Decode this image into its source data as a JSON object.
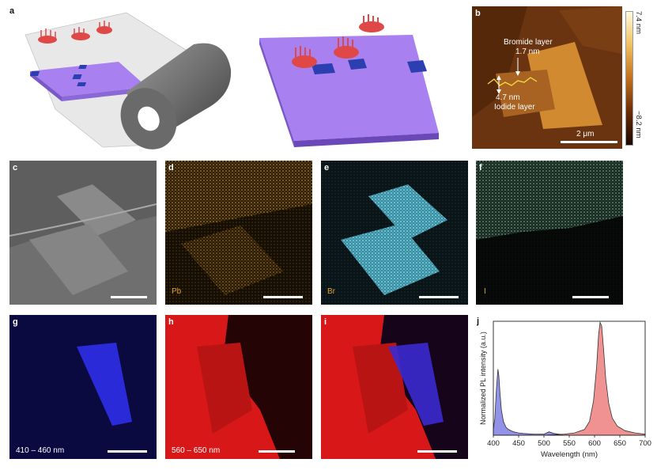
{
  "panels": {
    "a": {
      "label": "a"
    },
    "b": {
      "label": "b",
      "bromide_label": "Bromide layer",
      "bromide_thickness": "1.7 nm",
      "iodide_thickness": "4.7 nm",
      "iodide_label": "Iodide layer",
      "scalebar_label": "2 μm",
      "colorbar_max": "7.4 nm",
      "colorbar_min": "−8.2 nm"
    },
    "c": {
      "label": "c"
    },
    "d": {
      "label": "d",
      "element": "Pb"
    },
    "e": {
      "label": "e",
      "element": "Br"
    },
    "f": {
      "label": "f",
      "element": "I"
    },
    "g": {
      "label": "g",
      "range": "410 – 460 nm"
    },
    "h": {
      "label": "h",
      "range": "560 – 650 nm"
    },
    "i": {
      "label": "i"
    },
    "j": {
      "label": "j"
    }
  },
  "colors": {
    "blue_emission": "#2a2ad8",
    "red_emission": "#e81a1a",
    "pb_map": "#d99a2a",
    "br_map": "#5fc3d6",
    "i_map": "#7fb89a",
    "substrate": "#a880f0"
  },
  "chart_data": {
    "type": "area",
    "xlabel": "Wavelength (nm)",
    "ylabel": "Normalized PL intensity (a.u.)",
    "xlim": [
      400,
      700
    ],
    "xticks": [
      400,
      450,
      500,
      550,
      600,
      650,
      700
    ],
    "series": [
      {
        "color": "#4a4ad8",
        "x": [
          400,
          403,
          406,
          409,
          411,
          413,
          416,
          420,
          425,
          430,
          440,
          450,
          460,
          480,
          500,
          510,
          520,
          530,
          540
        ],
        "values": [
          0.05,
          0.15,
          0.4,
          0.58,
          0.52,
          0.38,
          0.22,
          0.12,
          0.07,
          0.05,
          0.03,
          0.02,
          0.015,
          0.01,
          0.01,
          0.03,
          0.015,
          0.01,
          0.0
        ]
      },
      {
        "color": "#e84a4a",
        "x": [
          500,
          520,
          540,
          560,
          580,
          590,
          598,
          604,
          608,
          611,
          614,
          618,
          622,
          628,
          635,
          645,
          660,
          680,
          700
        ],
        "values": [
          0.0,
          0.005,
          0.01,
          0.02,
          0.05,
          0.12,
          0.3,
          0.6,
          0.88,
          0.99,
          0.96,
          0.75,
          0.5,
          0.28,
          0.15,
          0.08,
          0.04,
          0.02,
          0.01
        ]
      }
    ]
  }
}
